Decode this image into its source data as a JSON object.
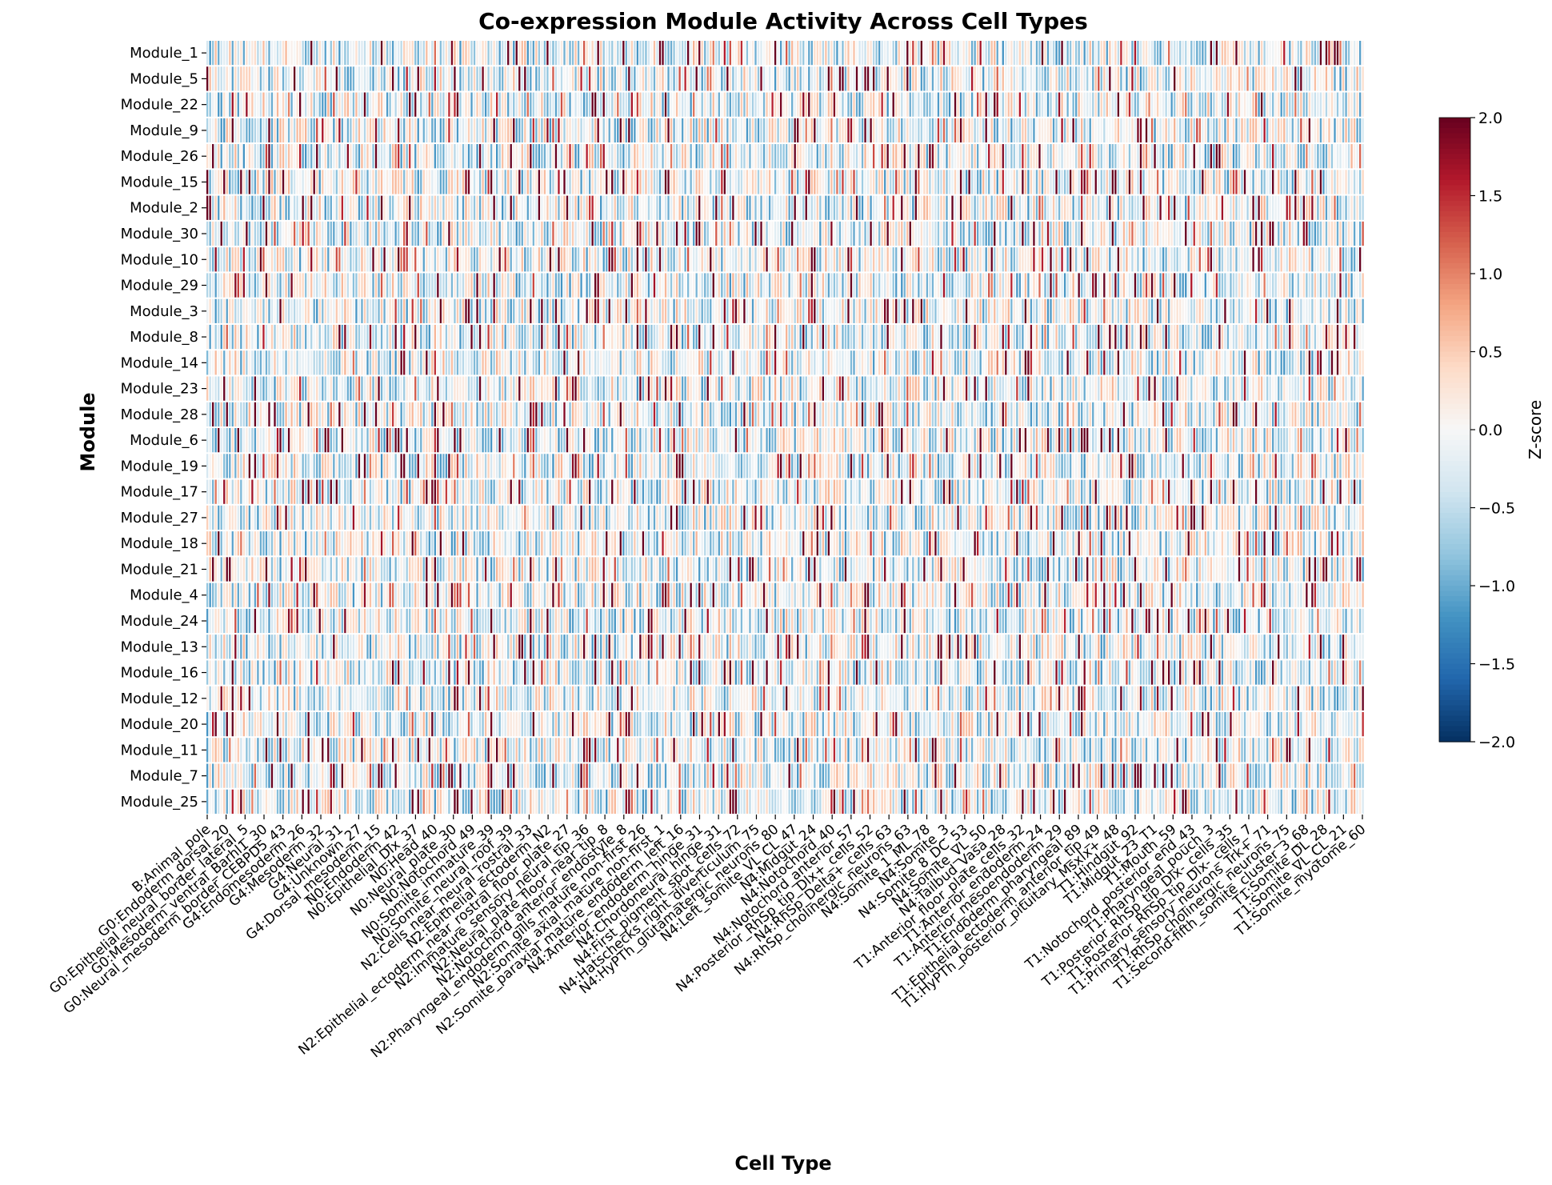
{
  "chart_data": {
    "type": "heatmap",
    "title": "Co-expression Module Activity Across Cell Types",
    "xlabel": "Cell Type",
    "ylabel": "Module",
    "colorbar": {
      "label": "Z-score",
      "vmin": -2.0,
      "vmax": 2.0,
      "ticks": [
        "2.0",
        "1.5",
        "1.0",
        "0.5",
        "0.0",
        "−0.5",
        "−1.0",
        "−1.5",
        "−2.0"
      ],
      "colormap": "RdBu_r",
      "colors": [
        "#053061",
        "#2166ac",
        "#4393c3",
        "#92c5de",
        "#d1e5f0",
        "#f7f7f7",
        "#fddbc7",
        "#f4a582",
        "#d6604d",
        "#b2182b",
        "#67001f"
      ]
    },
    "rows": [
      "Module_1",
      "Module_5",
      "Module_22",
      "Module_9",
      "Module_26",
      "Module_15",
      "Module_2",
      "Module_30",
      "Module_10",
      "Module_29",
      "Module_3",
      "Module_8",
      "Module_14",
      "Module_23",
      "Module_28",
      "Module_6",
      "Module_19",
      "Module_17",
      "Module_27",
      "Module_18",
      "Module_21",
      "Module_4",
      "Module_24",
      "Module_13",
      "Module_16",
      "Module_12",
      "Module_20",
      "Module_11",
      "Module_7",
      "Module_25"
    ],
    "n_columns": 412,
    "xtick_labels": [
      "B:Animal_pole",
      "G0:Endoderm_dorsal_20",
      "G0:Epithelial_neural_border_lateral_5",
      "G0:Mesoderm_ventral_Barhl1_30",
      "G0:Neural_mesoderm_border_CEBPD5_43",
      "G4:Endomesoderm_26",
      "G4:Mesoderm_32",
      "G4:Neural_31",
      "G4:Unknown_27",
      "G4:Dorsal_mesoderm_15",
      "N0:Endoderm_42",
      "N0:Epithelial_Dlx_37",
      "N0:Head_40",
      "N0:Neural_plate_30",
      "N0:Notochord_49",
      "N0:Somite_immature_39",
      "N0:Somite_neural_roof_39",
      "N2:Cells_near_neural_rostral_33",
      "N2:Epithelial_ectoderm_N2",
      "N2:Epithelial_ectoderm_near_rostral_floor_plate_27",
      "N2:Immature_sensory_neural_tip_36",
      "N2:Neural_plate_floor_near_tip_8",
      "N2:Notochord_anterior_endostyle_8",
      "N2:Pharyngeal_endoderm_gills_mature_non-first_26",
      "N2:Somite_axial_mature_non-first_1",
      "N2:Somite_paraxial_mature_endoderm_left_16",
      "N4:Anterior_endoderm_hinge_31",
      "N4:Chordoneural_hinge_31",
      "N4:First_pigment_spot_cells_72",
      "N4:Hatschecks_right_diverticulum_75",
      "N4:HyPTh_glutamatergic_neurons_80",
      "N4:Left_somite_VL_CL_47",
      "N4:Midgut_24",
      "N4:Notochord_40",
      "N4:Notochord_anterior_57",
      "N4:Posterior_RhSp_tip_Dlx+_cells_52",
      "N4:RhSp_Delta+_cells_63",
      "N4:RhSp_cholinergic_neurons_63",
      "N4:Somite_1_ML_78",
      "N4:Somite_3",
      "N4:Somite_8_DC_53",
      "N4:Somite_VL_50",
      "N4:Tailbud_Vasa_28",
      "T1:Anterior_floor_plate_cells_32",
      "T1:Anterior_endoderm_24",
      "T1:Anterior_mesoendoderm_29",
      "T1:Endoderm_pharyngeal_89",
      "T1:Epithelial_ectoderm_anterior_tip_49",
      "T1:HyPTh_posterior_pituitary_Msxlx+_48",
      "T1:Hindgut_92",
      "T1:Midgut_23_T1",
      "T1:Mouth_59",
      "T1:Notochord_posterior_end_43",
      "T1:Pharyngeal_pouch_3",
      "T1:Posterior_RhSp_tip_Dlx-_cells_35",
      "T1:Posterior_RhSp_tip_Dlx-_cells_7",
      "T1:Primary_sensory_neurons_Trk+_71",
      "T1:RhSp_cholinergic_neurons_75",
      "T1:Second-fifth_somite_cluster_3_68",
      "T1:Somite_DL_28",
      "T1:Somite_VL_CL_21",
      "T1:Somite_myotome_60"
    ],
    "grid": false
  }
}
